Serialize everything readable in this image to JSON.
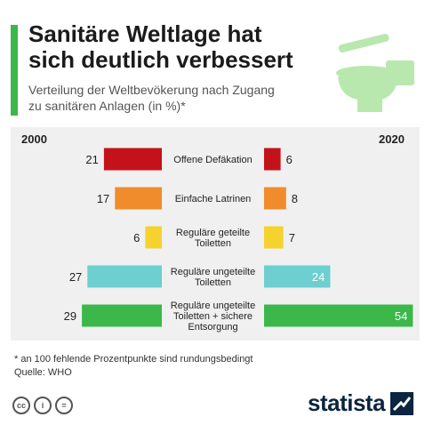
{
  "header": {
    "title_line1": "Sanitäre Weltlage hat",
    "title_line2": "sich deutlich verbessert",
    "subtitle_line1": "Verteilung der Weltbevökerung nach Zugang",
    "subtitle_line2": "zu sanitären Anlagen (in %)*"
  },
  "colors": {
    "accent": "#3cb84a",
    "panel": "#f0f0f0",
    "toilet": "#b8e8ad"
  },
  "icons": {
    "illustration": "toilet-icon",
    "license": [
      "cc-icon",
      "by-icon",
      "equals-icon"
    ],
    "brand": "statista-logo"
  },
  "chart_data": {
    "type": "bar",
    "title": "Sanitäre Weltlage hat sich deutlich verbessert",
    "subtitle": "Verteilung der Weltbevökerung nach Zugang zu sanitären Anlagen (in %)*",
    "layout": "butterfly",
    "series": [
      {
        "name": "2000",
        "values": [
          21,
          17,
          6,
          27,
          29
        ]
      },
      {
        "name": "2020",
        "values": [
          6,
          8,
          7,
          24,
          54
        ]
      }
    ],
    "categories": [
      {
        "lines": [
          "Offene Defäkation"
        ],
        "color": "#c4121a"
      },
      {
        "lines": [
          "Einfache Latrinen"
        ],
        "color": "#f08c2c"
      },
      {
        "lines": [
          "Reguläre geteilte",
          "Toiletten"
        ],
        "color": "#f5d22e"
      },
      {
        "lines": [
          "Reguläre ungeteilte",
          "Toiletten"
        ],
        "color": "#6dcfcf"
      },
      {
        "lines": [
          "Reguläre ungeteilte",
          "Toiletten + sichere",
          "Entsorgung"
        ],
        "color": "#3cb84a"
      }
    ]
  },
  "footer": {
    "footnote": "* an 100 fehlende Prozentpunkte sind rundungsbedingt",
    "source": "Quelle: WHO",
    "brand": "statista",
    "cc_symbols": [
      "cc",
      "i",
      "="
    ]
  }
}
